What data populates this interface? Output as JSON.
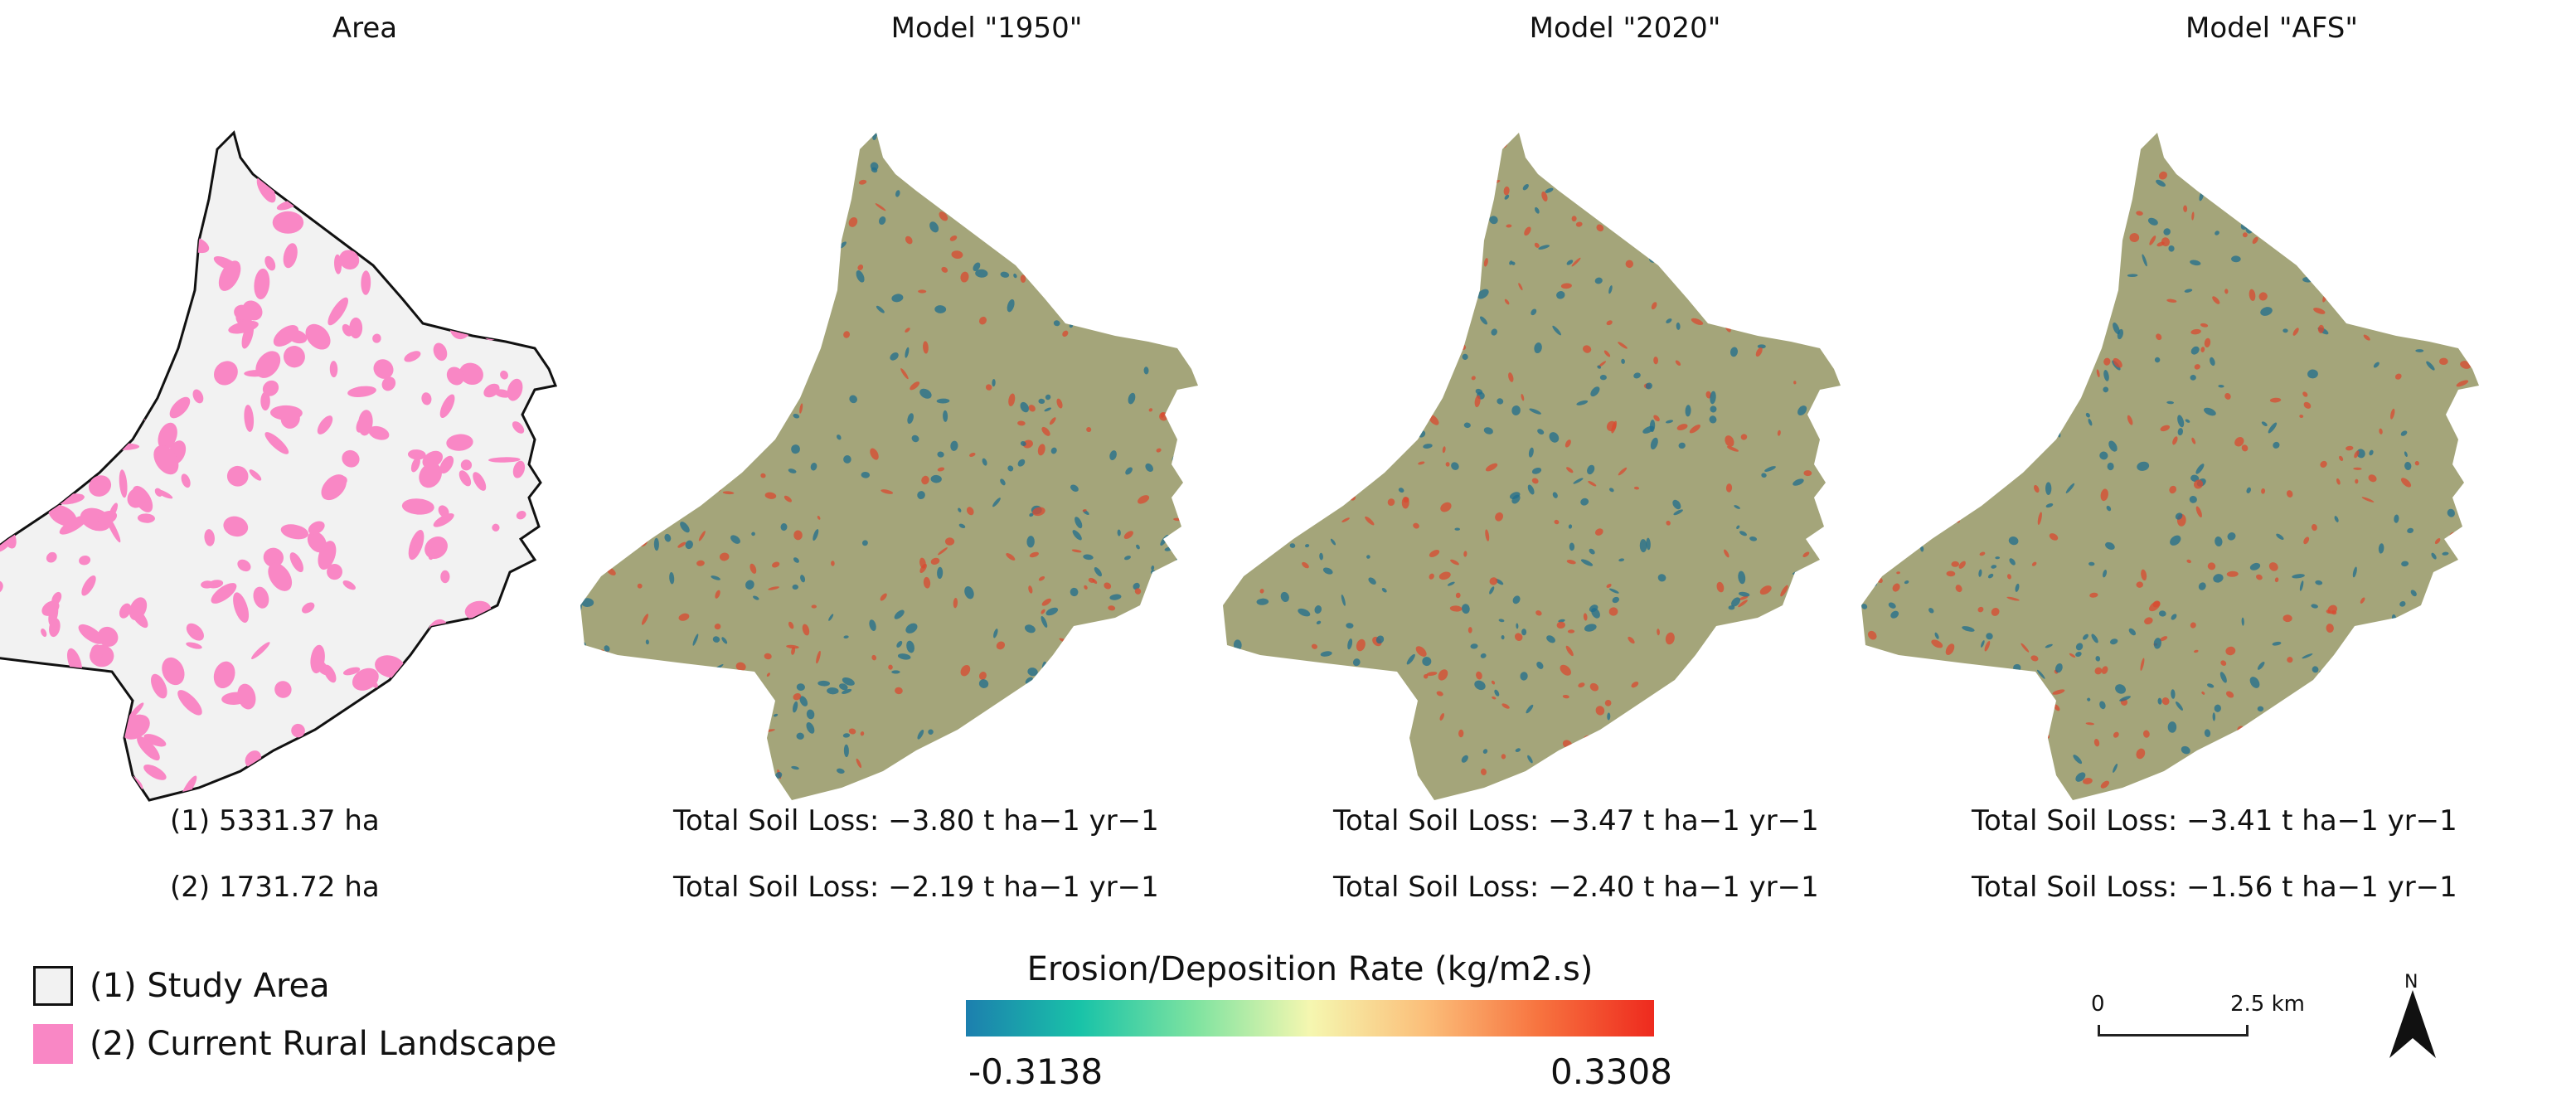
{
  "panels": [
    {
      "title": "Area",
      "stats": [
        "(1) 5331.37 ha",
        "(2) 1731.72 ha"
      ]
    },
    {
      "title": "Model \"1950\"",
      "stats": [
        "Total Soil Loss: −3.80 t ha−1 yr−1",
        "Total Soil Loss: −2.19 t ha−1 yr−1"
      ]
    },
    {
      "title": "Model \"2020\"",
      "stats": [
        "Total Soil Loss: −3.47 t ha−1 yr−1",
        "Total Soil Loss: −2.40 t ha−1 yr−1"
      ]
    },
    {
      "title": "Model \"AFS\"",
      "stats": [
        "Total Soil Loss: −3.41 t ha−1 yr−1",
        "Total Soil Loss: −1.56 t ha−1 yr−1"
      ]
    }
  ],
  "legend": {
    "items": [
      {
        "label": "(1) Study Area",
        "color": "#f2f2f2"
      },
      {
        "label": "(2) Current Rural Landscape",
        "color": "#f987c5"
      }
    ]
  },
  "colorbar": {
    "title": "Erosion/Deposition Rate (kg/m2.s)",
    "min_label": "-0.3138",
    "max_label": "0.3308",
    "min": -0.3138,
    "max": 0.3308,
    "colors": [
      "#1c7fae",
      "#19c3a8",
      "#7ee3a0",
      "#f5f7b0",
      "#fbbf7a",
      "#f7733f",
      "#ee2a1e"
    ]
  },
  "scalebar": {
    "start_label": "0",
    "end_label": "2.5 km"
  },
  "north": {
    "label": "N"
  },
  "map_colors": {
    "outline": "#111111",
    "area_fill": "#f2f2f2",
    "rural_fill": "#f987c5",
    "terrain": "#a4a57a",
    "erosion": "#1f6e8e",
    "deposition": "#d94a30"
  }
}
